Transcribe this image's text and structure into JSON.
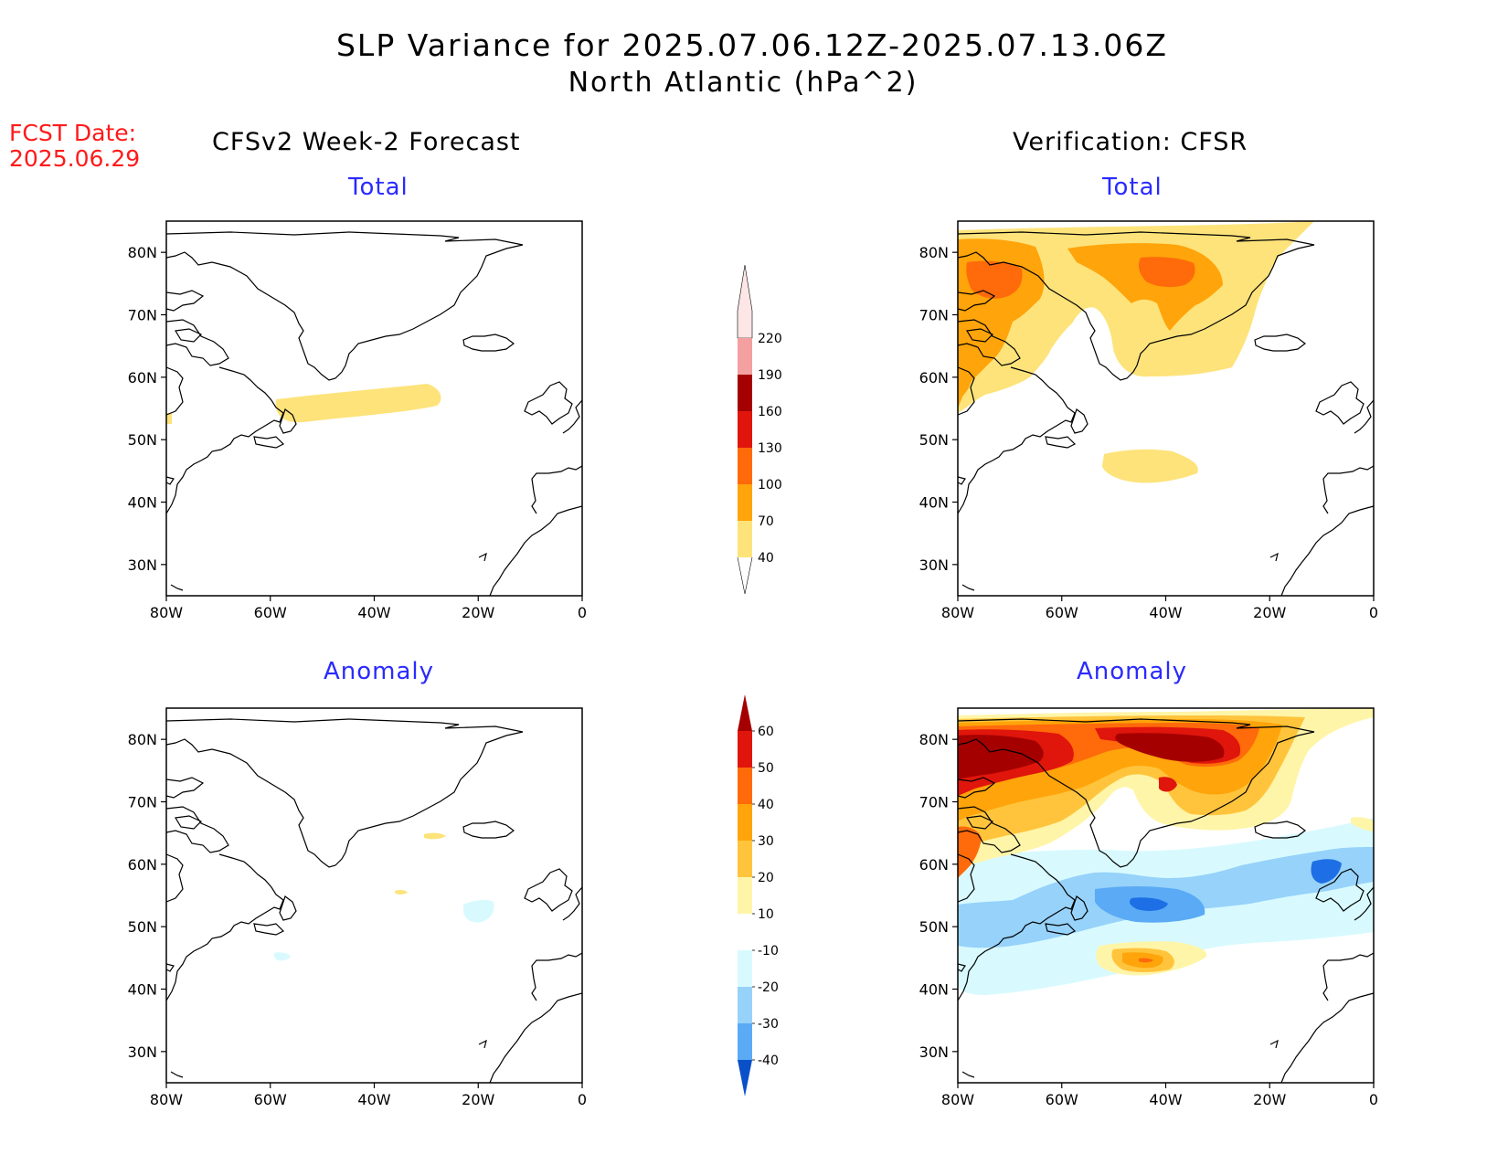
{
  "title_line1": "SLP Variance for 2025.07.06.12Z-2025.07.13.06Z",
  "title_line2": "North Atlantic (hPa^2)",
  "fcst_label": "FCST Date:",
  "fcst_date": "2025.06.29",
  "left_column_title": "CFSv2 Week-2 Forecast",
  "right_column_title": "Verification: CFSR",
  "panel_titles": {
    "top_left": "Total",
    "top_right": "Total",
    "bottom_left": "Anomaly",
    "bottom_right": "Anomaly"
  },
  "lat_ticks": [
    "80N",
    "70N",
    "60N",
    "50N",
    "40N",
    "30N"
  ],
  "lon_ticks": [
    "80W",
    "60W",
    "40W",
    "20W",
    "0"
  ],
  "total_colorbar": {
    "labels": [
      "40",
      "70",
      "100",
      "130",
      "160",
      "190",
      "220"
    ],
    "colors": [
      "#fde37a",
      "#ffa40a",
      "#ff6a0a",
      "#e0150c",
      "#a50000",
      "#f4a0a0",
      "#fde6e6"
    ]
  },
  "anomaly_colorbar": {
    "labels": [
      "60",
      "50",
      "40",
      "30",
      "20",
      "10",
      "-10",
      "-20",
      "-30",
      "-40"
    ],
    "colors": [
      "#a50000",
      "#e0150c",
      "#ff6a0a",
      "#ffa40a",
      "#ffc43c",
      "#fff5a8",
      "#ffffff",
      "#d8faff",
      "#96d2fa",
      "#5aaaf5",
      "#1e6ee6",
      "#0a50c8"
    ]
  }
}
